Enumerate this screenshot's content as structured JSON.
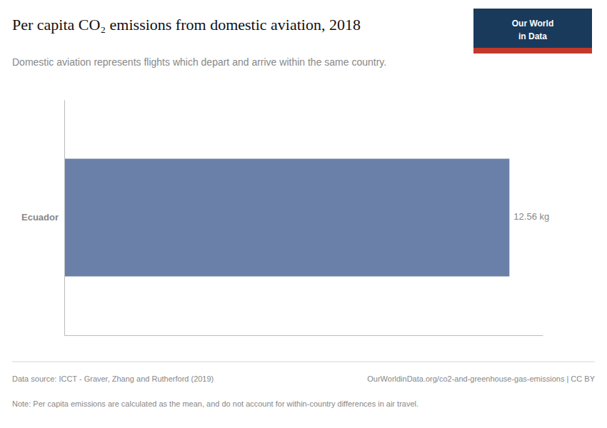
{
  "chart_data": {
    "type": "bar",
    "orientation": "horizontal",
    "title": "Per capita CO₂ emissions from domestic aviation, 2018",
    "subtitle": "Domestic aviation represents flights which depart and arrive within the same country.",
    "categories": [
      "Ecuador"
    ],
    "values": [
      12.56
    ],
    "value_labels": [
      "12.56 kg"
    ],
    "data_labels": true,
    "color": "#6b80a8",
    "xlim": [
      0,
      13.5
    ],
    "tick_labels": "y",
    "grid": false,
    "annotations": [
      "Data source: ICCT - Graver, Zhang and Rutherford (2019)",
      "OurWorldinData.org/co2-and-greenhouse-gas-emissions | CC BY",
      "Note: Per capita emissions are calculated as the mean, and do not account for within-country differences in air travel.",
      "Our World",
      "in Data"
    ]
  }
}
